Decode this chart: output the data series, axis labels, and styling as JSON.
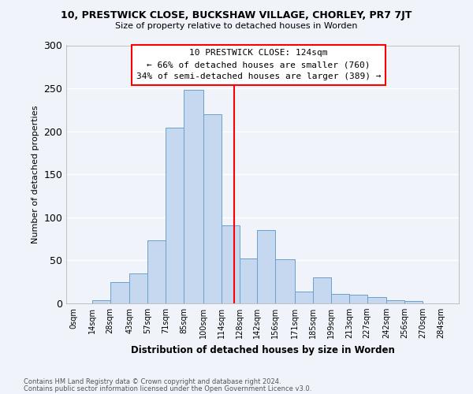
{
  "title1": "10, PRESTWICK CLOSE, BUCKSHAW VILLAGE, CHORLEY, PR7 7JT",
  "title2": "Size of property relative to detached houses in Worden",
  "xlabel": "Distribution of detached houses by size in Worden",
  "ylabel": "Number of detached properties",
  "bin_labels": [
    "0sqm",
    "14sqm",
    "28sqm",
    "43sqm",
    "57sqm",
    "71sqm",
    "85sqm",
    "100sqm",
    "114sqm",
    "128sqm",
    "142sqm",
    "156sqm",
    "171sqm",
    "185sqm",
    "199sqm",
    "213sqm",
    "227sqm",
    "242sqm",
    "256sqm",
    "270sqm",
    "284sqm"
  ],
  "bar_heights": [
    0,
    4,
    25,
    35,
    73,
    204,
    248,
    220,
    91,
    52,
    85,
    51,
    14,
    30,
    11,
    10,
    7,
    4,
    3,
    0
  ],
  "bar_color": "#c5d8f0",
  "bar_edge_color": "#6aa0cc",
  "vline_x": 124,
  "vline_color": "red",
  "property_size": 124,
  "pct_smaller": 66,
  "count_smaller": 760,
  "pct_larger": 34,
  "count_larger": 389,
  "ylim": [
    0,
    300
  ],
  "yticks": [
    0,
    50,
    100,
    150,
    200,
    250,
    300
  ],
  "footer1": "Contains HM Land Registry data © Crown copyright and database right 2024.",
  "footer2": "Contains public sector information licensed under the Open Government Licence v3.0.",
  "bg_color": "#f0f4fa",
  "grid_color": "white",
  "bin_edges": [
    0,
    14,
    28,
    43,
    57,
    71,
    85,
    100,
    114,
    128,
    142,
    156,
    171,
    185,
    199,
    213,
    227,
    242,
    256,
    270,
    284
  ]
}
